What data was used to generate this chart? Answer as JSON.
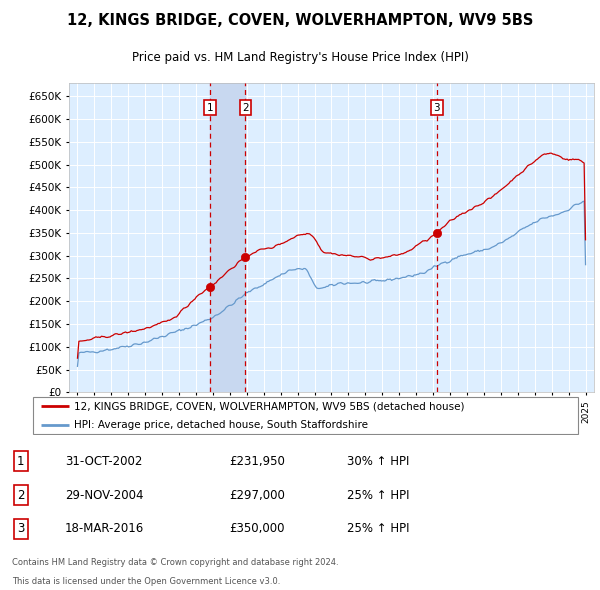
{
  "title": "12, KINGS BRIDGE, COVEN, WOLVERHAMPTON, WV9 5BS",
  "subtitle": "Price paid vs. HM Land Registry's House Price Index (HPI)",
  "legend_line1": "12, KINGS BRIDGE, COVEN, WOLVERHAMPTON, WV9 5BS (detached house)",
  "legend_line2": "HPI: Average price, detached house, South Staffordshire",
  "sale_labels": [
    {
      "num": 1,
      "date": "31-OCT-2002",
      "price": "£231,950",
      "change": "30% ↑ HPI",
      "year": 2002.83,
      "value": 231950
    },
    {
      "num": 2,
      "date": "29-NOV-2004",
      "price": "£297,000",
      "change": "25% ↑ HPI",
      "year": 2004.92,
      "value": 297000
    },
    {
      "num": 3,
      "date": "18-MAR-2016",
      "price": "£350,000",
      "change": "25% ↑ HPI",
      "year": 2016.21,
      "value": 350000
    }
  ],
  "footnote1": "Contains HM Land Registry data © Crown copyright and database right 2024.",
  "footnote2": "This data is licensed under the Open Government Licence v3.0.",
  "yticks": [
    0,
    50000,
    100000,
    150000,
    200000,
    250000,
    300000,
    350000,
    400000,
    450000,
    500000,
    550000,
    600000,
    650000
  ],
  "xlim": [
    1994.5,
    2025.5
  ],
  "ylim": [
    0,
    680000
  ],
  "red_color": "#cc0000",
  "blue_color": "#6699cc",
  "background_color": "#ddeeff",
  "shade_color": "#c8d8f0"
}
